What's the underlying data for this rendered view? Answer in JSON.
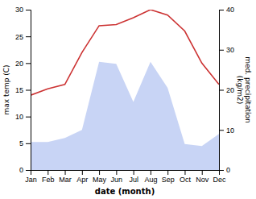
{
  "chart_data": {
    "type": "line",
    "categories": [
      "Jan",
      "Feb",
      "Mar",
      "Apr",
      "May",
      "Jun",
      "Jul",
      "Aug",
      "Sep",
      "Oct",
      "Nov",
      "Dec"
    ],
    "series": [
      {
        "type": "area",
        "axis": "y2",
        "color": "#c8d4f5",
        "values": [
          7.0,
          7.0,
          8.0,
          10.0,
          27.0,
          26.5,
          17.0,
          27.0,
          20.5,
          6.5,
          6.0,
          9.0
        ]
      },
      {
        "type": "line",
        "color": "#cc3333",
        "values": [
          14.0,
          15.2,
          16.0,
          22.0,
          27.0,
          27.2,
          28.5,
          30.0,
          29.0,
          26.0,
          20.0,
          16.0
        ]
      }
    ],
    "x_label": "date (month)",
    "y_label": "max temp (C)",
    "y2_label": "med. precipitation\n(kg/m2)",
    "ylim": [
      0,
      30
    ],
    "yticks": [
      0,
      5,
      10,
      15,
      20,
      25,
      30
    ],
    "y2lim": [
      0,
      40
    ],
    "y2ticks": [
      0,
      10,
      20,
      30,
      40
    ]
  }
}
